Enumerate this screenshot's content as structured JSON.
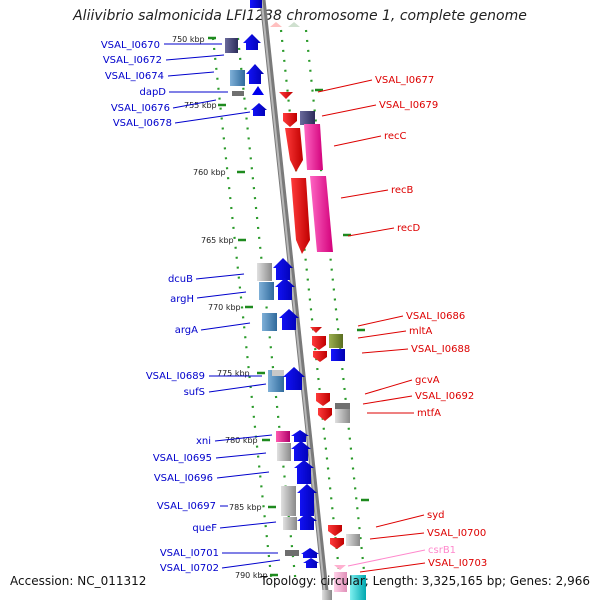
{
  "title": "Aliivibrio salmonicida LFI1238 chromosome 1, complete genome",
  "accession": "Accession: NC_011312",
  "summary": "Topology: circular; Length: 3,325,165 bp; Genes: 2,966",
  "colors": {
    "backbone": "#8c8c8c",
    "left_label": "#0000cc",
    "right_label": "#dd0000",
    "pink_label": "#ff88cc",
    "tick": "#228822"
  },
  "ticks": [
    {
      "label": "750 kbp"
    },
    {
      "label": "755 kbp"
    },
    {
      "label": "760 kbp"
    },
    {
      "label": "765 kbp"
    },
    {
      "label": "770 kbp"
    },
    {
      "label": "775 kbp"
    },
    {
      "label": "780 kbp"
    },
    {
      "label": "785 kbp"
    },
    {
      "label": "790 kbp"
    }
  ],
  "left_genes": [
    "VSAL_I0670",
    "VSAL_I0672",
    "VSAL_I0674",
    "dapD",
    "VSAL_I0676",
    "VSAL_I0678",
    "dcuB",
    "argH",
    "argA",
    "VSAL_I0689",
    "sufS",
    "xni",
    "VSAL_I0695",
    "VSAL_I0696",
    "VSAL_I0697",
    "queF",
    "VSAL_I0701",
    "VSAL_I0702"
  ],
  "right_genes": [
    "VSAL_I0677",
    "VSAL_I0679",
    "recC",
    "recB",
    "recD",
    "VSAL_I0686",
    "mltA",
    "VSAL_I0688",
    "gcvA",
    "VSAL_I0692",
    "mtfA",
    "syd",
    "VSAL_I0700",
    "csrB1",
    "VSAL_I0703"
  ]
}
